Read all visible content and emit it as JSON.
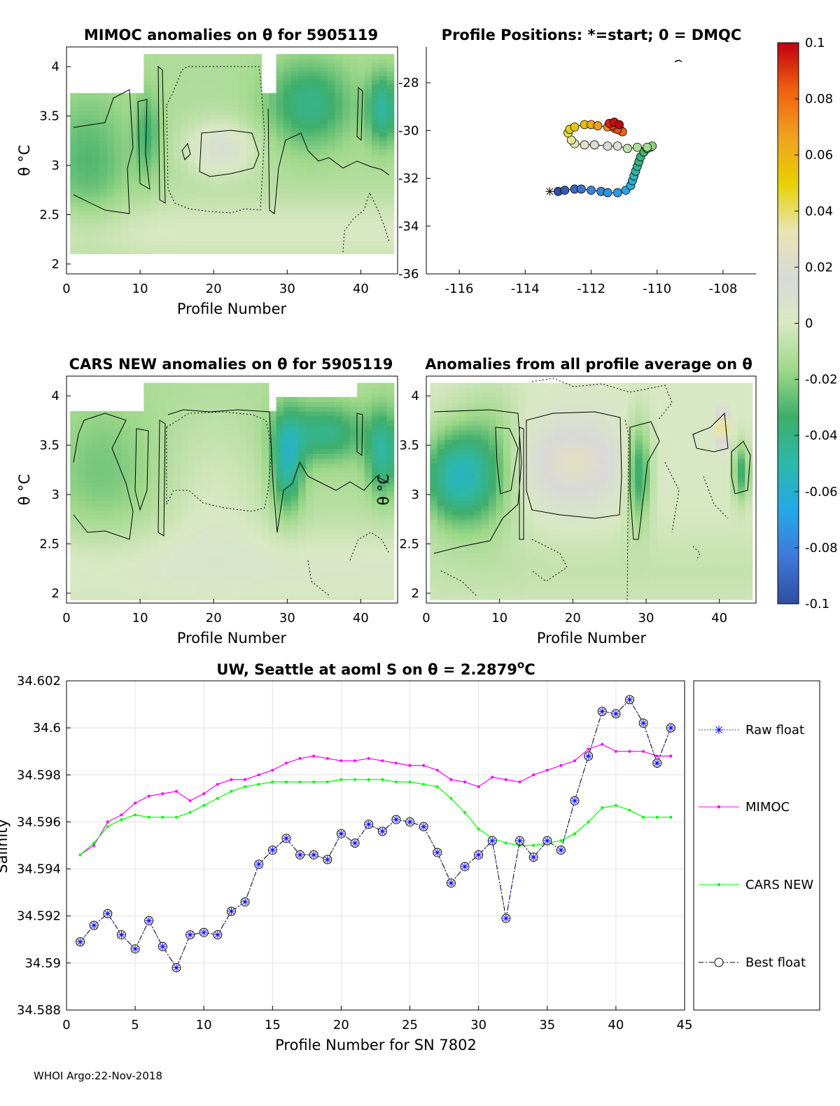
{
  "footer": "WHOI Argo:22-Nov-2018",
  "colorbar": {
    "stops": [
      "#2f4f9f",
      "#3f78d8",
      "#25a8e8",
      "#2db8a8",
      "#3fae6a",
      "#9fd88a",
      "#d9e8c4",
      "#d9d9d9",
      "#e8e4b0",
      "#e8d000",
      "#f0a020",
      "#f06010",
      "#c00010"
    ],
    "min": -0.1,
    "max": 0.1,
    "tick_labels": [
      "0.1",
      "0.08",
      "0.06",
      "0.04",
      "0.02",
      "0",
      "-0.02",
      "-0.04",
      "-0.06",
      "-0.08",
      "-0.1"
    ]
  },
  "chart_data": [
    {
      "id": "mimoc-anom",
      "type": "heatmap",
      "title": "MIMOC anomalies on θ  for 5905119",
      "xlabel": "Profile Number",
      "ylabel": "θ °C",
      "xlim": [
        0,
        45
      ],
      "ylim": [
        1.9,
        4.2
      ],
      "xticks": [
        "0",
        "10",
        "20",
        "30",
        "40"
      ],
      "yticks": [
        "2",
        "2.5",
        "3",
        "3.5",
        "4"
      ]
    },
    {
      "id": "profile-positions",
      "type": "scatter",
      "title": "Profile Positions: *=start; 0 = DMQC",
      "xlim": [
        -117,
        -107
      ],
      "ylim": [
        -36,
        -26.5
      ],
      "xticks": [
        "-116",
        "-114",
        "-112",
        "-110",
        "-108"
      ],
      "yticks": [
        "-28",
        "-30",
        "-32",
        "-34",
        "-36"
      ],
      "lon": [
        -113.0,
        -112.8,
        -112.5,
        -112.3,
        -112.0,
        -111.7,
        -111.5,
        -111.2,
        -110.95,
        -110.8,
        -110.75,
        -110.7,
        -110.65,
        -110.6,
        -110.55,
        -110.5,
        -110.4,
        -110.3,
        -110.2,
        -110.15,
        -110.3,
        -110.6,
        -110.9,
        -111.2,
        -111.5,
        -111.9,
        -112.2,
        -112.5,
        -112.6,
        -112.7,
        -112.65,
        -112.5,
        -112.2,
        -112.0,
        -111.8,
        -111.5,
        -111.3,
        -111.1,
        -111.05,
        -111.2,
        -111.35,
        -111.45,
        -111.3,
        -111.15
      ],
      "lat": [
        -32.55,
        -32.5,
        -32.45,
        -32.45,
        -32.5,
        -32.55,
        -32.6,
        -32.6,
        -32.5,
        -32.3,
        -32.1,
        -31.9,
        -31.7,
        -31.5,
        -31.3,
        -31.1,
        -30.9,
        -30.75,
        -30.7,
        -30.65,
        -30.7,
        -30.7,
        -30.75,
        -30.65,
        -30.65,
        -30.6,
        -30.6,
        -30.55,
        -30.4,
        -30.1,
        -29.95,
        -29.85,
        -29.75,
        -29.75,
        -29.8,
        -29.85,
        -29.9,
        -30.0,
        -30.05,
        -29.95,
        -29.8,
        -29.7,
        -29.65,
        -29.75
      ],
      "color_values": [
        -0.1,
        -0.095,
        -0.09,
        -0.085,
        -0.08,
        -0.078,
        -0.075,
        -0.072,
        -0.068,
        -0.063,
        -0.058,
        -0.053,
        -0.048,
        -0.044,
        -0.04,
        -0.036,
        -0.032,
        -0.028,
        -0.024,
        -0.02,
        -0.016,
        -0.012,
        -0.008,
        0.012,
        0.016,
        0.02,
        0.025,
        0.03,
        0.036,
        0.042,
        0.048,
        0.054,
        0.058,
        0.062,
        0.066,
        0.07,
        0.074,
        0.078,
        0.082,
        0.086,
        0.09,
        0.094,
        0.097,
        0.1
      ]
    },
    {
      "id": "cars-anom",
      "type": "heatmap",
      "title": "CARS NEW anomalies on θ for 5905119",
      "xlabel": "Profile Number",
      "ylabel": "θ °C",
      "xlim": [
        0,
        45
      ],
      "ylim": [
        1.9,
        4.2
      ],
      "xticks": [
        "0",
        "10",
        "20",
        "30",
        "40"
      ],
      "yticks": [
        "2",
        "2.5",
        "3",
        "3.5",
        "4"
      ]
    },
    {
      "id": "all-avg-anom",
      "type": "heatmap",
      "title": "Anomalies from all profile average on θ",
      "xlabel": "Profile Number",
      "ylabel": "θ °C",
      "xlim": [
        0,
        45
      ],
      "ylim": [
        1.9,
        4.2
      ],
      "xticks": [
        "0",
        "10",
        "20",
        "30",
        "40"
      ],
      "yticks": [
        "2",
        "2.5",
        "3",
        "3.5",
        "4"
      ]
    },
    {
      "id": "salinity",
      "type": "line",
      "title_prefix": "UW, Seattle at aoml S on θ = 2.2879",
      "title_sup": "o",
      "title_suffix": "C",
      "xlabel": "Profile Number for SN 7802",
      "ylabel": "Salinity",
      "xlim": [
        0,
        45
      ],
      "ylim": [
        34.588,
        34.602
      ],
      "xticks": [
        "0",
        "5",
        "10",
        "15",
        "20",
        "25",
        "30",
        "35",
        "40",
        "45"
      ],
      "yticks": [
        "34.588",
        "34.59",
        "34.592",
        "34.594",
        "34.596",
        "34.598",
        "34.6",
        "34.602"
      ],
      "x": [
        1,
        2,
        3,
        4,
        5,
        6,
        7,
        8,
        9,
        10,
        11,
        12,
        13,
        14,
        15,
        16,
        17,
        18,
        19,
        20,
        21,
        22,
        23,
        24,
        25,
        26,
        27,
        28,
        29,
        30,
        31,
        32,
        33,
        34,
        35,
        36,
        37,
        38,
        39,
        40,
        41,
        42,
        43,
        44
      ],
      "series": [
        {
          "name": "Raw float",
          "color": "#0000ff",
          "values": [
            34.5909,
            34.5916,
            34.5921,
            34.5912,
            34.5906,
            34.5918,
            34.5907,
            34.5898,
            34.5912,
            34.5913,
            34.5912,
            34.5922,
            34.5926,
            34.5942,
            34.5948,
            34.5953,
            34.5946,
            34.5946,
            34.5944,
            34.5955,
            34.5951,
            34.5959,
            34.5956,
            34.5961,
            34.596,
            34.5958,
            34.5947,
            34.5934,
            34.5941,
            34.5946,
            34.5952,
            34.5919,
            34.5952,
            34.5945,
            34.5952,
            34.5948,
            34.5969,
            34.5988,
            34.6007,
            34.6006,
            34.6012,
            34.6002,
            34.5985,
            34.6
          ]
        },
        {
          "name": "MIMOC",
          "color": "#ff00ff",
          "values": [
            34.5946,
            34.595,
            34.596,
            34.5963,
            34.5968,
            34.5971,
            34.5972,
            34.5973,
            34.5969,
            34.5972,
            34.5976,
            34.5978,
            34.5978,
            34.598,
            34.5982,
            34.5985,
            34.5987,
            34.5988,
            34.5987,
            34.5986,
            34.5986,
            34.5987,
            34.5986,
            34.5985,
            34.5984,
            34.5984,
            34.5982,
            34.5978,
            34.5977,
            34.5975,
            34.5979,
            34.5978,
            34.5977,
            34.598,
            34.5982,
            34.5984,
            34.5986,
            34.5991,
            34.5993,
            34.599,
            34.599,
            34.599,
            34.5988,
            34.5988
          ]
        },
        {
          "name": "CARS NEW",
          "color": "#00ff00",
          "values": [
            34.5946,
            34.5951,
            34.5958,
            34.5961,
            34.5963,
            34.5962,
            34.5962,
            34.5962,
            34.5964,
            34.5967,
            34.597,
            34.5973,
            34.5975,
            34.5976,
            34.5977,
            34.5977,
            34.5977,
            34.5977,
            34.5977,
            34.5978,
            34.5978,
            34.5978,
            34.5978,
            34.5977,
            34.5977,
            34.5976,
            34.5975,
            34.597,
            34.5964,
            34.5957,
            34.5953,
            34.5951,
            34.595,
            34.595,
            34.5951,
            34.5952,
            34.5955,
            34.596,
            34.5966,
            34.5967,
            34.5965,
            34.5962,
            34.5962,
            34.5962
          ]
        },
        {
          "name": "Best float",
          "color": "#000000",
          "values": [
            34.5909,
            34.5916,
            34.5921,
            34.5912,
            34.5906,
            34.5918,
            34.5907,
            34.5898,
            34.5912,
            34.5913,
            34.5912,
            34.5922,
            34.5926,
            34.5942,
            34.5948,
            34.5953,
            34.5946,
            34.5946,
            34.5944,
            34.5955,
            34.5951,
            34.5959,
            34.5956,
            34.5961,
            34.596,
            34.5958,
            34.5947,
            34.5934,
            34.5941,
            34.5946,
            34.5952,
            34.5919,
            34.5952,
            34.5945,
            34.5952,
            34.5948,
            34.5969,
            34.5988,
            34.6007,
            34.6006,
            34.6012,
            34.6002,
            34.5985,
            34.6
          ]
        }
      ],
      "legend": [
        "Raw float",
        "MIMOC",
        "CARS NEW",
        "Best float"
      ]
    }
  ]
}
